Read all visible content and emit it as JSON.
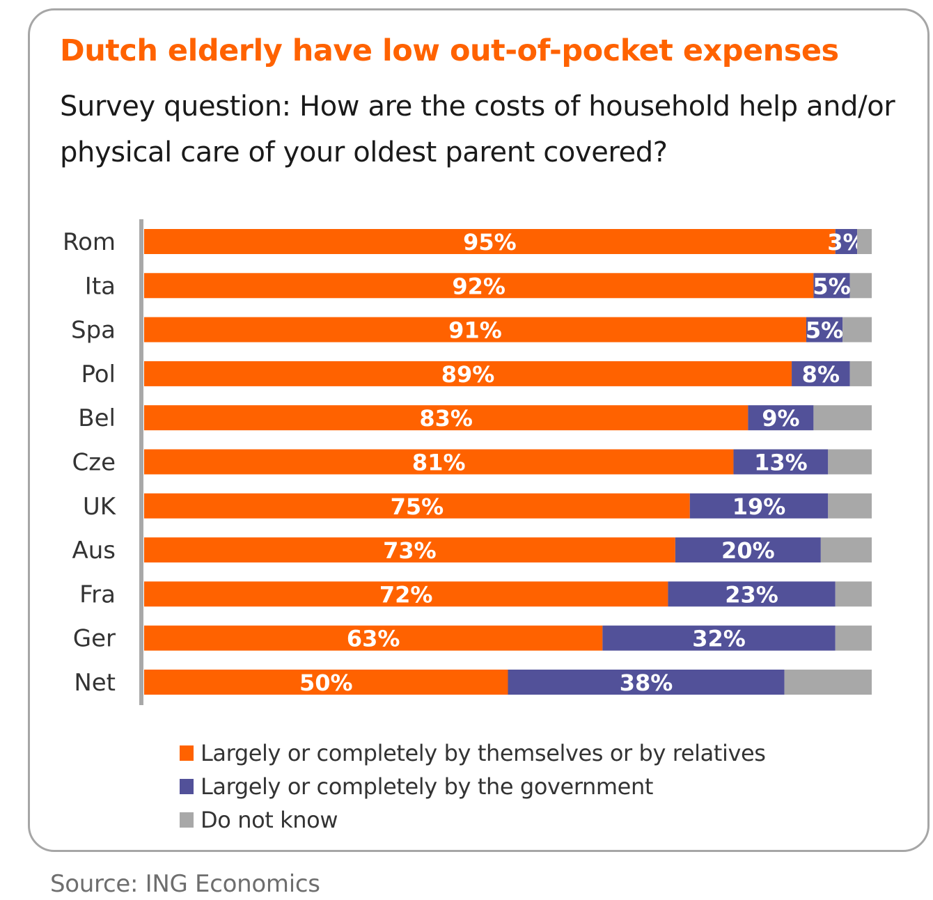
{
  "chart_data": {
    "type": "bar",
    "orientation": "horizontal",
    "stacked": true,
    "title": "Dutch elderly have low out-of-pocket expenses",
    "subtitle": "Survey question: How are the costs of household help and/or physical care of your oldest parent covered?",
    "xlabel": "",
    "ylabel": "",
    "xlim": [
      0,
      100
    ],
    "grid": false,
    "legend_position": "bottom",
    "categories": [
      "Rom",
      "Ita",
      "Spa",
      "Pol",
      "Bel",
      "Cze",
      "UK",
      "Aus",
      "Fra",
      "Ger",
      "Net"
    ],
    "series": [
      {
        "name": "Largely or completely by themselves or by relatives",
        "color": "#ff6200",
        "values": [
          95,
          92,
          91,
          89,
          83,
          81,
          75,
          73,
          72,
          63,
          50
        ],
        "labels": [
          "95%",
          "92%",
          "91%",
          "89%",
          "83%",
          "81%",
          "75%",
          "73%",
          "72%",
          "63%",
          "50%"
        ]
      },
      {
        "name": "Largely or completely by the government",
        "color": "#525199",
        "values": [
          3,
          5,
          5,
          8,
          9,
          13,
          19,
          20,
          23,
          32,
          38
        ],
        "labels": [
          "3%",
          "5%",
          "5%",
          "8%",
          "9%",
          "13%",
          "19%",
          "20%",
          "23%",
          "32%",
          "38%"
        ]
      },
      {
        "name": "Do not know",
        "color": "#a8a8a8",
        "values": [
          2,
          3,
          4,
          3,
          8,
          6,
          6,
          7,
          5,
          5,
          12
        ],
        "labels": []
      }
    ],
    "source": "Source: ING Economics"
  }
}
